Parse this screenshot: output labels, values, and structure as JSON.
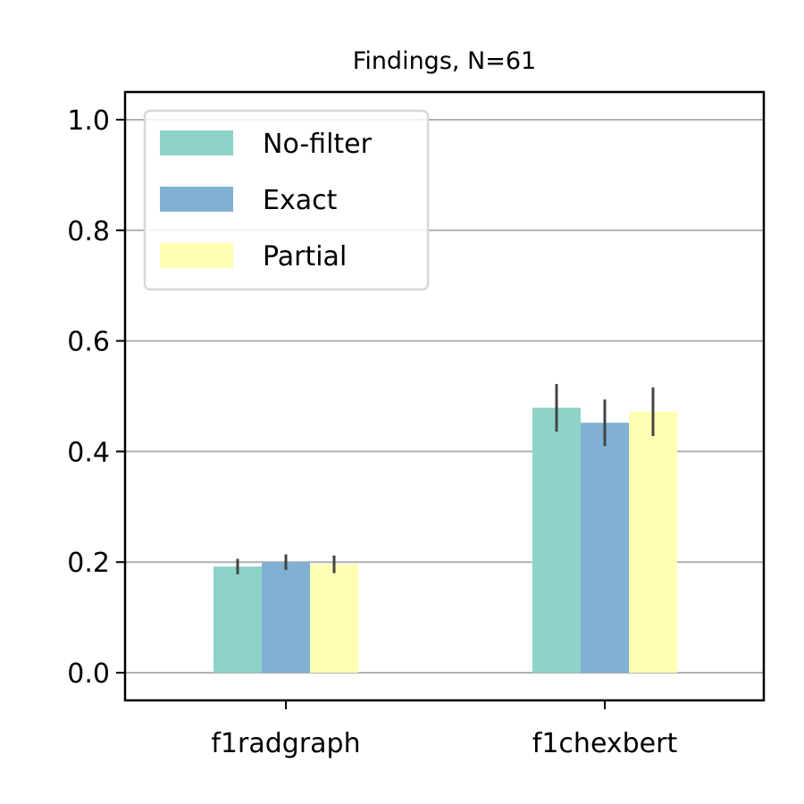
{
  "chart_data": {
    "type": "bar",
    "title": "Findings, N=61",
    "xlabel": "",
    "ylabel": "",
    "categories": [
      "f1radgraph",
      "f1chexbert"
    ],
    "series": [
      {
        "name": "No-filter",
        "color": "#8dd3c7",
        "values": [
          0.192,
          0.479
        ],
        "error": [
          0.014,
          0.043
        ]
      },
      {
        "name": "Exact",
        "color": "#80b1d3",
        "values": [
          0.2,
          0.452
        ],
        "error": [
          0.014,
          0.042
        ]
      },
      {
        "name": "Partial",
        "color": "#ffffb3",
        "values": [
          0.196,
          0.472
        ],
        "error": [
          0.016,
          0.044
        ]
      }
    ],
    "ylim": [
      -0.05,
      1.05
    ],
    "yticks": [
      0.0,
      0.2,
      0.4,
      0.6,
      0.8,
      1.0
    ],
    "ytick_labels": [
      "0.0",
      "0.2",
      "0.4",
      "0.6",
      "0.8",
      "1.0"
    ],
    "grid": "y",
    "legend_position": "top-left"
  }
}
